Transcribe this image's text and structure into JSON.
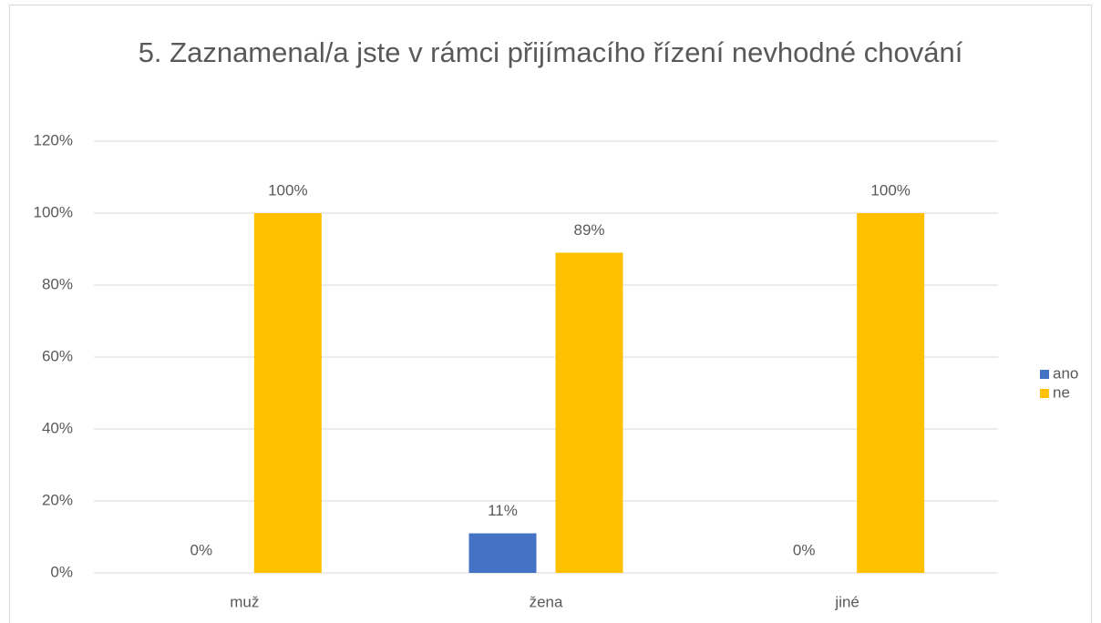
{
  "chart_data": {
    "type": "bar",
    "title": "5. Zaznamenal/a jste v rámci přijímacího řízení nevhodné chování",
    "categories": [
      "muž",
      "žena",
      "jiné"
    ],
    "series": [
      {
        "name": "ano",
        "color": "#4472c4",
        "values": [
          0,
          11,
          0
        ],
        "value_labels": [
          "0%",
          "11%",
          "0%"
        ]
      },
      {
        "name": "ne",
        "color": "#ffc000",
        "values": [
          100,
          89,
          100
        ],
        "value_labels": [
          "100%",
          "89%",
          "100%"
        ]
      }
    ],
    "ylim": [
      0,
      120
    ],
    "yticks": [
      {
        "value": 0,
        "label": "0%"
      },
      {
        "value": 20,
        "label": "20%"
      },
      {
        "value": 40,
        "label": "40%"
      },
      {
        "value": 60,
        "label": "60%"
      },
      {
        "value": 80,
        "label": "80%"
      },
      {
        "value": 100,
        "label": "100%"
      },
      {
        "value": 120,
        "label": "120%"
      }
    ],
    "grid": true,
    "legend": "right"
  }
}
